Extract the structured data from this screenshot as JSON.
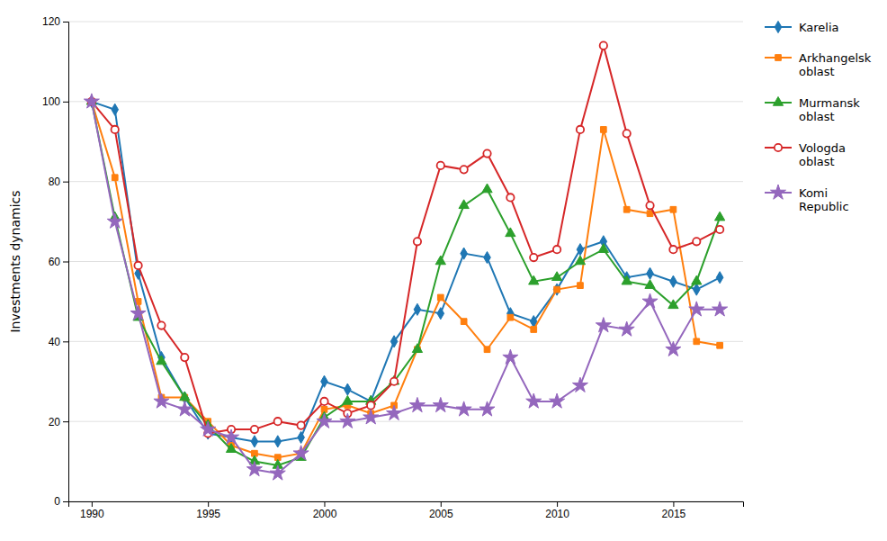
{
  "chart_data": {
    "type": "line",
    "ylabel": "Investments dynamics",
    "x": [
      1990,
      1991,
      1992,
      1993,
      1994,
      1995,
      1996,
      1997,
      1998,
      1999,
      2000,
      2001,
      2002,
      2003,
      2004,
      2005,
      2006,
      2007,
      2008,
      2009,
      2010,
      2011,
      2012,
      2013,
      2014,
      2015,
      2016,
      2017
    ],
    "series": [
      {
        "name": "Karelia",
        "marker": "diamond",
        "values": [
          100,
          98,
          57,
          36,
          26,
          17,
          16,
          15,
          15,
          16,
          30,
          28,
          25,
          40,
          48,
          47,
          62,
          61,
          47,
          45,
          53,
          63,
          65,
          56,
          57,
          55,
          53,
          56
        ]
      },
      {
        "name": "Arkhangelsk\noblast",
        "marker": "square",
        "values": [
          100,
          81,
          50,
          26,
          26,
          20,
          14,
          12,
          11,
          12,
          23,
          24,
          22,
          24,
          38,
          51,
          45,
          38,
          46,
          43,
          53,
          54,
          93,
          73,
          72,
          73,
          40,
          39
        ]
      },
      {
        "name": "Murmansk\noblast",
        "marker": "triangle",
        "values": [
          100,
          71,
          46,
          35,
          26,
          19,
          13,
          10,
          9,
          11,
          21,
          25,
          25,
          30,
          38,
          60,
          74,
          78,
          67,
          55,
          56,
          60,
          63,
          55,
          54,
          49,
          55,
          71
        ]
      },
      {
        "name": "Vologda\noblast",
        "marker": "open-circle",
        "values": [
          100,
          93,
          59,
          44,
          36,
          17,
          18,
          18,
          20,
          19,
          25,
          22,
          24,
          30,
          65,
          84,
          83,
          87,
          76,
          61,
          63,
          93,
          114,
          92,
          74,
          63,
          65,
          68
        ]
      },
      {
        "name": "Komi\nRepublic",
        "marker": "star",
        "values": [
          100,
          70,
          47,
          25,
          23,
          18,
          16,
          8,
          7,
          12,
          20,
          20,
          21,
          22,
          24,
          24,
          23,
          23,
          36,
          25,
          25,
          29,
          44,
          43,
          50,
          38,
          48,
          48
        ]
      }
    ],
    "xlim": [
      1989,
      2018
    ],
    "xticks": [
      1990,
      1995,
      2000,
      2005,
      2010,
      2015
    ],
    "ylim": [
      0,
      120
    ],
    "yticks": [
      0,
      20,
      40,
      60,
      80,
      100,
      120
    ],
    "grid": true,
    "legend": "right"
  }
}
